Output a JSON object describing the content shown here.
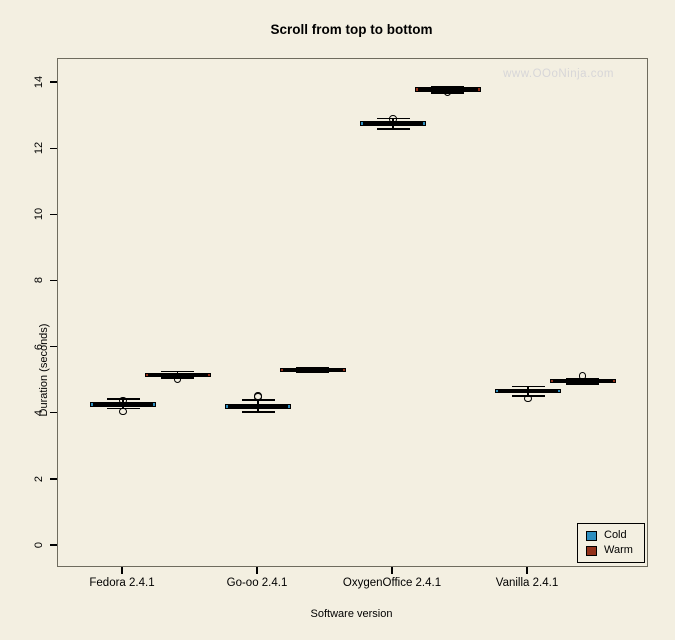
{
  "chart_data": {
    "type": "boxplot",
    "title": "Scroll from top to bottom",
    "xlabel": "Software version",
    "ylabel": "Duration (seconds)",
    "ylim": [
      0,
      14
    ],
    "y_ticks": [
      0,
      2,
      4,
      6,
      8,
      10,
      12,
      14
    ],
    "categories": [
      "Fedora 2.4.1",
      "Go-oo 2.4.1",
      "OxygenOffice 2.4.1",
      "Vanilla 2.4.1"
    ],
    "series": [
      {
        "name": "Cold",
        "color": "#2E8FC0"
      },
      {
        "name": "Warm",
        "color": "#93311A"
      }
    ],
    "grid": false,
    "legend_position": "bottom-right",
    "watermark": "www.OOoNinja.com",
    "boxes": [
      {
        "category": "Fedora 2.4.1",
        "group": 0,
        "series": "Cold",
        "median": 4.27,
        "q1": 4.19,
        "q3": 4.35,
        "whisker_low": 4.15,
        "whisker_high": 4.45,
        "outliers": [
          4.4,
          4.07
        ]
      },
      {
        "category": "Fedora 2.4.1",
        "group": 0,
        "series": "Warm",
        "median": 5.17,
        "q1": 5.11,
        "q3": 5.24,
        "whisker_low": 5.08,
        "whisker_high": 5.28,
        "outliers": [
          5.05
        ]
      },
      {
        "category": "Go-oo 2.4.1",
        "group": 1,
        "series": "Cold",
        "median": 4.22,
        "q1": 4.14,
        "q3": 4.29,
        "whisker_low": 4.05,
        "whisker_high": 4.42,
        "outliers": [
          4.5,
          4.53
        ]
      },
      {
        "category": "Go-oo 2.4.1",
        "group": 1,
        "series": "Warm",
        "median": 5.32,
        "q1": 5.26,
        "q3": 5.38,
        "whisker_low": 5.24,
        "whisker_high": 5.4,
        "outliers": []
      },
      {
        "category": "OxygenOffice 2.4.1",
        "group": 2,
        "series": "Cold",
        "median": 12.77,
        "q1": 12.7,
        "q3": 12.85,
        "whisker_low": 12.61,
        "whisker_high": 12.92,
        "outliers": [
          12.91
        ]
      },
      {
        "category": "OxygenOffice 2.4.1",
        "group": 2,
        "series": "Warm",
        "median": 13.81,
        "q1": 13.74,
        "q3": 13.88,
        "whisker_low": 13.7,
        "whisker_high": 13.9,
        "outliers": [
          13.71
        ]
      },
      {
        "category": "Vanilla 2.4.1",
        "group": 3,
        "series": "Cold",
        "median": 4.69,
        "q1": 4.63,
        "q3": 4.75,
        "whisker_low": 4.54,
        "whisker_high": 4.82,
        "outliers": [
          4.46
        ]
      },
      {
        "category": "Vanilla 2.4.1",
        "group": 3,
        "series": "Warm",
        "median": 4.99,
        "q1": 4.93,
        "q3": 5.05,
        "whisker_low": 4.9,
        "whisker_high": 5.06,
        "outliers": [
          5.14
        ]
      }
    ],
    "colors": {
      "background": "#F3EFE1",
      "box_line": "#000000",
      "plot_border": "#6E6B5E",
      "watermark": "#D7D6D8",
      "cold": "#2E8FC0",
      "warm": "#93311A"
    }
  }
}
